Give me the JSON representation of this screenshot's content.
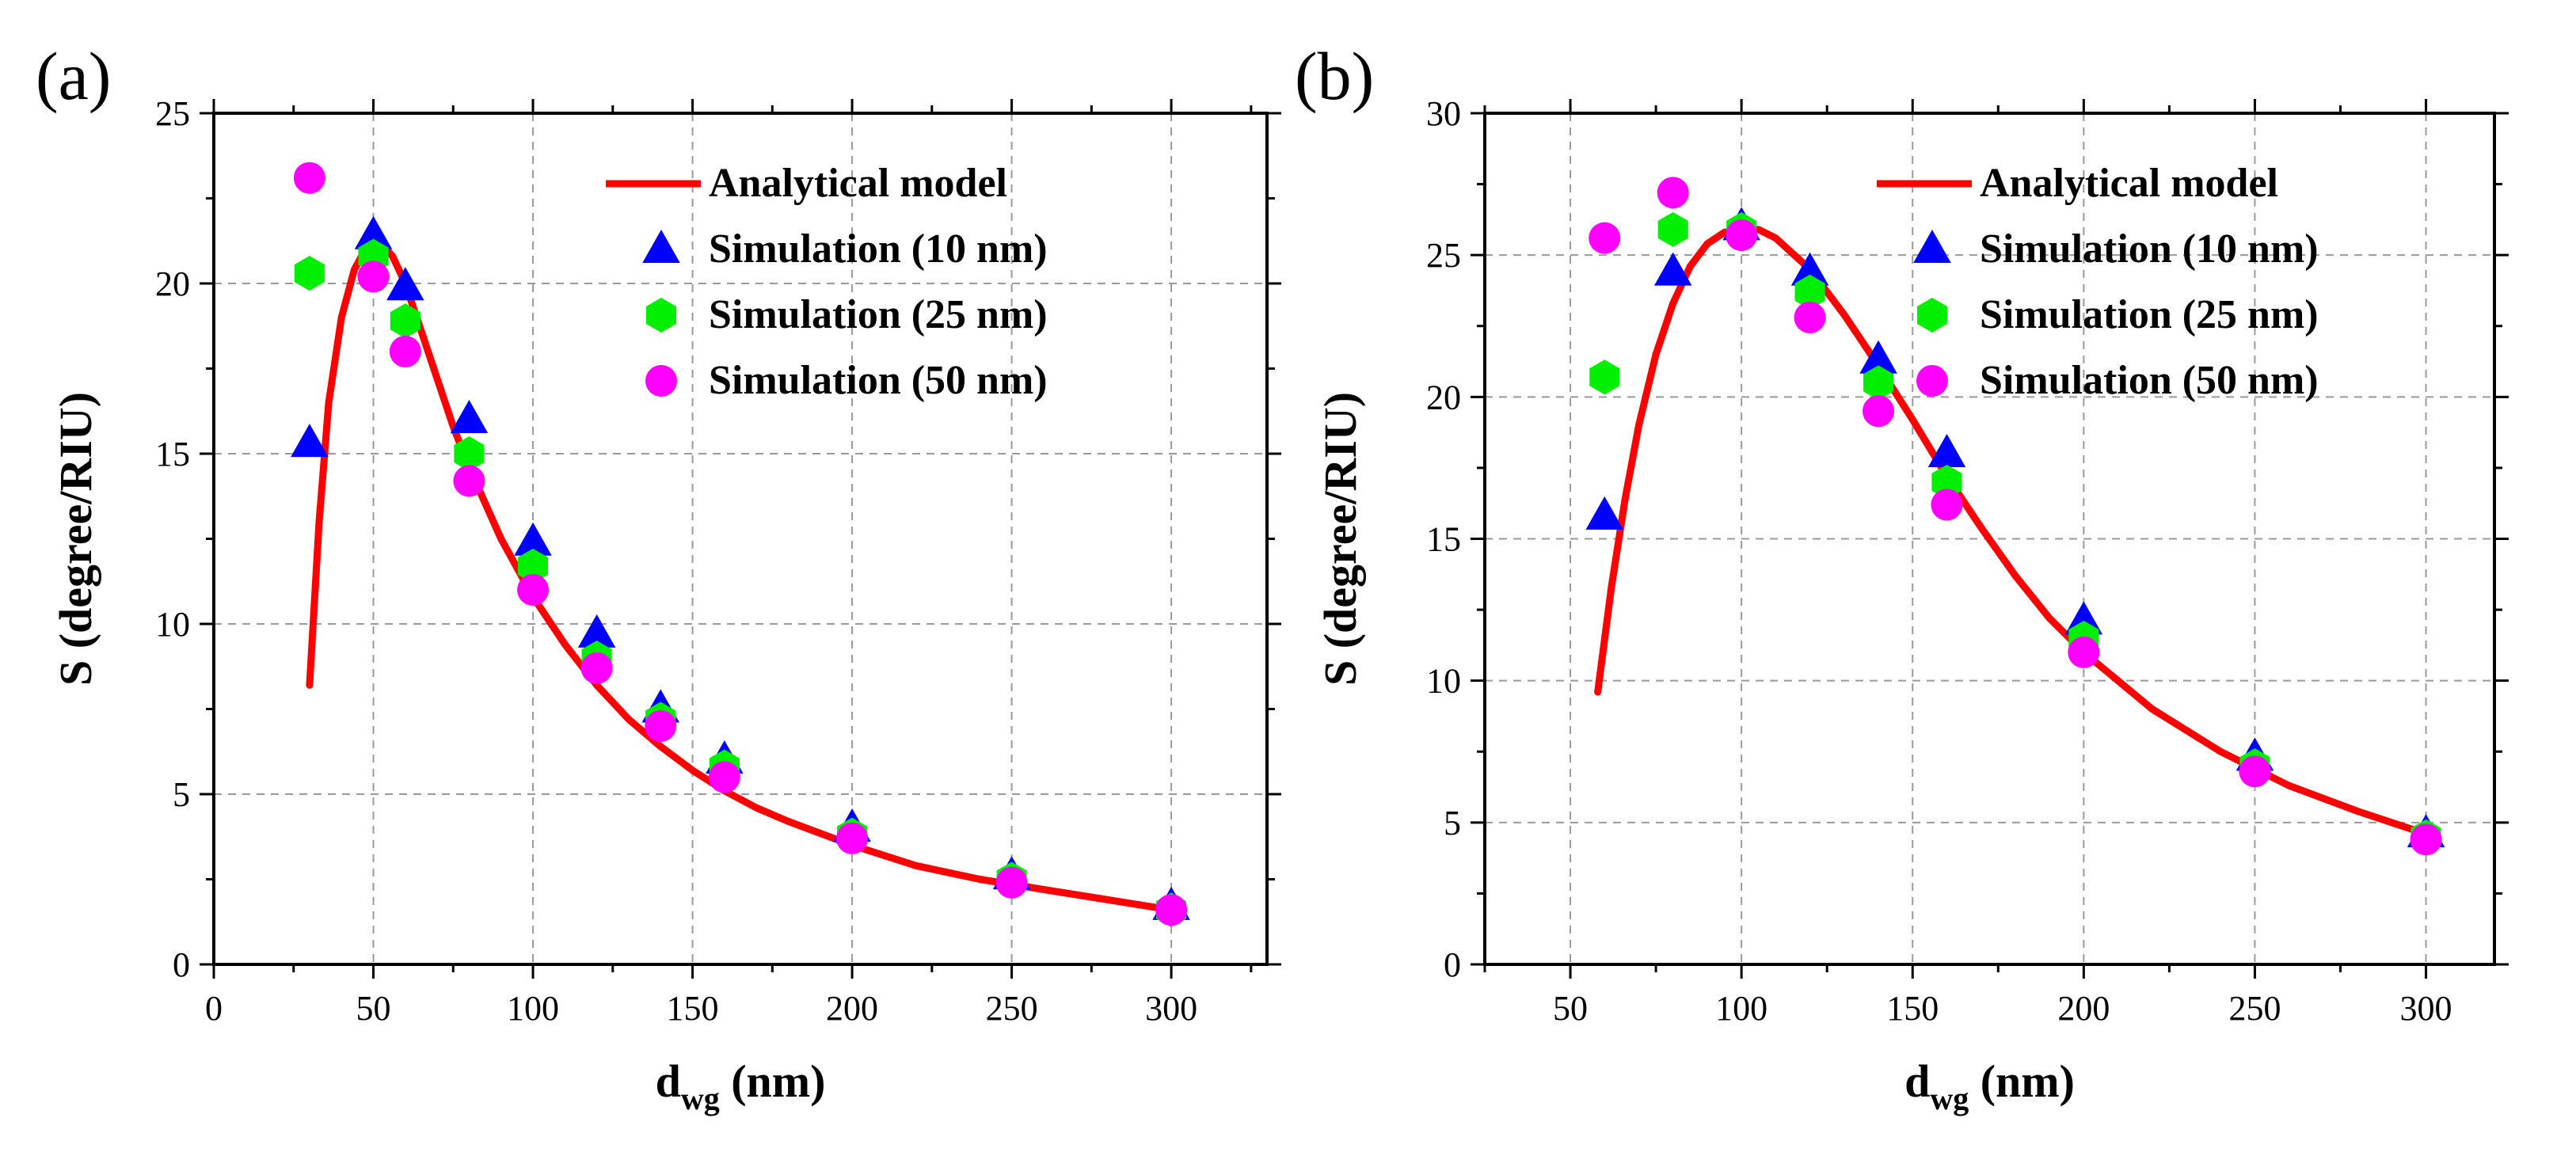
{
  "chart_data": [
    {
      "type": "scatter+line",
      "panel_label": "(a)",
      "xlabel_main": "d",
      "xlabel_sub": "wg",
      "xlabel_tail": " (nm)",
      "ylabel": "S (degree/RIU)",
      "xlim": [
        0,
        330
      ],
      "ylim": [
        0,
        25
      ],
      "xticks": [
        0,
        50,
        100,
        150,
        200,
        250,
        300
      ],
      "yticks": [
        0,
        5,
        10,
        15,
        20,
        25
      ],
      "grid": true,
      "legend_position": "top-right",
      "colors": {
        "analytical": "#ff0000",
        "sim10": "#0000ff",
        "sim25": "#00ee00",
        "sim50": "#ff00ff"
      },
      "legend": [
        "Analytical model",
        "Simulation (10 nm)",
        "Simulation (25 nm)",
        "Simulation (50 nm)"
      ],
      "analytical_x": [
        30,
        33,
        36,
        40,
        44,
        48,
        52,
        56,
        60,
        65,
        70,
        75,
        80,
        90,
        100,
        110,
        120,
        130,
        140,
        150,
        160,
        170,
        180,
        200,
        220,
        240,
        260,
        280,
        300
      ],
      "analytical_y": [
        8.2,
        13.0,
        16.5,
        19.0,
        20.4,
        21.1,
        21.2,
        20.8,
        20.0,
        18.6,
        17.2,
        15.8,
        14.6,
        12.5,
        10.8,
        9.4,
        8.2,
        7.2,
        6.4,
        5.7,
        5.1,
        4.6,
        4.2,
        3.5,
        2.9,
        2.5,
        2.2,
        1.9,
        1.6
      ],
      "series": [
        {
          "name": "Simulation (10 nm)",
          "marker": "triangle",
          "x": [
            30,
            50,
            60,
            80,
            100,
            120,
            140,
            160,
            200,
            250,
            300
          ],
          "y": [
            15.3,
            21.4,
            19.9,
            16.0,
            12.4,
            9.7,
            7.5,
            6.0,
            4.0,
            2.6,
            1.7
          ]
        },
        {
          "name": "Simulation (25 nm)",
          "marker": "hexagon",
          "x": [
            30,
            50,
            60,
            80,
            100,
            120,
            140,
            160,
            200,
            250,
            300
          ],
          "y": [
            20.3,
            20.8,
            18.9,
            15.0,
            11.7,
            9.0,
            7.2,
            5.8,
            3.8,
            2.5,
            1.6
          ]
        },
        {
          "name": "Simulation (50 nm)",
          "marker": "circle",
          "x": [
            30,
            50,
            60,
            80,
            100,
            120,
            140,
            160,
            200,
            250,
            300
          ],
          "y": [
            23.1,
            20.2,
            18.0,
            14.2,
            11.0,
            8.7,
            7.0,
            5.5,
            3.7,
            2.4,
            1.6
          ]
        }
      ]
    },
    {
      "type": "scatter+line",
      "panel_label": "(b)",
      "xlabel_main": "d",
      "xlabel_sub": "wg",
      "xlabel_tail": " (nm)",
      "ylabel": "S (degree/RIU)",
      "xlim": [
        25,
        320
      ],
      "ylim": [
        0,
        30
      ],
      "xticks": [
        50,
        100,
        150,
        200,
        250,
        300
      ],
      "yticks": [
        0,
        5,
        10,
        15,
        20,
        25,
        30
      ],
      "grid": true,
      "legend_position": "top-right",
      "colors": {
        "analytical": "#ff0000",
        "sim10": "#0000ff",
        "sim25": "#00ee00",
        "sim50": "#ff00ff"
      },
      "legend": [
        "Analytical model",
        "Simulation (10 nm)",
        "Simulation (25 nm)",
        "Simulation (50 nm)"
      ],
      "analytical_x": [
        58,
        62,
        66,
        70,
        75,
        80,
        85,
        90,
        95,
        100,
        105,
        110,
        120,
        130,
        140,
        150,
        160,
        170,
        180,
        190,
        200,
        220,
        240,
        260,
        280,
        300
      ],
      "analytical_y": [
        9.6,
        13.3,
        16.4,
        19.0,
        21.5,
        23.3,
        24.6,
        25.4,
        25.8,
        25.9,
        25.9,
        25.6,
        24.5,
        22.9,
        21.1,
        19.2,
        17.2,
        15.4,
        13.7,
        12.2,
        11.0,
        9.0,
        7.5,
        6.3,
        5.4,
        4.6
      ],
      "series": [
        {
          "name": "Simulation (10 nm)",
          "marker": "triangle",
          "x": [
            60,
            80,
            100,
            120,
            140,
            160,
            200,
            250,
            300
          ],
          "y": [
            15.8,
            24.4,
            26.0,
            24.4,
            21.3,
            18.0,
            12.1,
            7.3,
            4.6
          ]
        },
        {
          "name": "Simulation (25 nm)",
          "marker": "hexagon",
          "x": [
            60,
            80,
            100,
            120,
            140,
            160,
            200,
            250,
            300
          ],
          "y": [
            20.7,
            25.9,
            25.9,
            23.7,
            20.5,
            17.0,
            11.5,
            7.0,
            4.5
          ]
        },
        {
          "name": "Simulation (50 nm)",
          "marker": "circle",
          "x": [
            60,
            80,
            100,
            120,
            140,
            160,
            200,
            250,
            300
          ],
          "y": [
            25.6,
            27.2,
            25.7,
            22.8,
            19.5,
            16.2,
            11.0,
            6.8,
            4.4
          ]
        }
      ]
    }
  ]
}
